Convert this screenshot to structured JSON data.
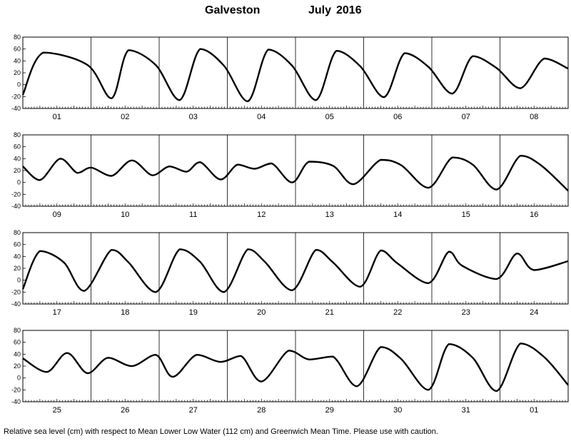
{
  "header": {
    "station": "Galveston",
    "month": "July",
    "year": "2016"
  },
  "footer": {
    "note": "Relative sea level (cm) with respect to Mean Lower Low Water (112 cm) and Greenwich Mean Time. Please use with caution."
  },
  "chart_data": {
    "type": "line",
    "title": "Galveston July 2016",
    "ylabel": "",
    "xlabel": "",
    "ylim": [
      -40,
      80
    ],
    "yticks": [
      -40,
      -20,
      0,
      20,
      40,
      60,
      80
    ],
    "grid": "vertical day separators only",
    "line_color": "#000000",
    "panels": [
      {
        "days": [
          "01",
          "02",
          "03",
          "04",
          "05",
          "06",
          "07",
          "08"
        ],
        "series": [
          {
            "x_days": [
              0,
              0.3,
              0.95,
              1.3,
              1.55,
              1.95,
              2.3,
              2.6,
              2.95,
              3.3,
              3.6,
              3.95,
              4.3,
              4.6,
              4.95,
              5.3,
              5.6,
              5.95,
              6.3,
              6.6,
              6.95,
              7.3,
              7.65,
              8.0
            ],
            "y_cm": [
              -17,
              54,
              33,
              -23,
              58,
              33,
              -26,
              60,
              32,
              -28,
              59,
              32,
              -26,
              57,
              31,
              -21,
              53,
              30,
              -15,
              48,
              28,
              -6,
              44,
              27
            ]
          }
        ]
      },
      {
        "days": [
          "09",
          "10",
          "11",
          "12",
          "13",
          "14",
          "15",
          "16"
        ],
        "series": [
          {
            "x_days": [
              0,
              0.25,
              0.55,
              0.8,
              1.0,
              1.3,
              1.6,
              1.9,
              2.15,
              2.4,
              2.6,
              2.9,
              3.15,
              3.4,
              3.65,
              3.95,
              4.2,
              4.55,
              4.85,
              5.25,
              5.55,
              5.95,
              6.3,
              6.6,
              6.95,
              7.3,
              7.6,
              8.0
            ],
            "y_cm": [
              27,
              4,
              40,
              16,
              25,
              11,
              37,
              12,
              27,
              18,
              34,
              5,
              30,
              23,
              32,
              0,
              35,
              28,
              -3,
              38,
              29,
              -9,
              42,
              30,
              -12,
              45,
              29,
              -14
            ]
          }
        ]
      },
      {
        "days": [
          "17",
          "18",
          "19",
          "20",
          "21",
          "22",
          "23",
          "24"
        ],
        "series": [
          {
            "x_days": [
              0,
              0.25,
              0.6,
              0.9,
              1.3,
              1.55,
              1.95,
              2.3,
              2.6,
              2.95,
              3.3,
              3.55,
              3.95,
              4.3,
              4.55,
              4.95,
              5.25,
              5.5,
              5.95,
              6.25,
              6.45,
              6.95,
              7.25,
              7.5,
              8.0
            ],
            "y_cm": [
              -15,
              49,
              30,
              -18,
              51,
              30,
              -20,
              52,
              31,
              -20,
              52,
              31,
              -17,
              51,
              30,
              -11,
              50,
              28,
              -5,
              48,
              24,
              2,
              45,
              17,
              32
            ]
          }
        ]
      },
      {
        "days": [
          "25",
          "26",
          "27",
          "28",
          "29",
          "30",
          "31",
          "01"
        ],
        "series": [
          {
            "x_days": [
              0,
              0.35,
              0.65,
              0.95,
              1.25,
              1.6,
              1.95,
              2.2,
              2.55,
              2.9,
              3.2,
              3.5,
              3.9,
              4.2,
              4.55,
              4.9,
              5.25,
              5.55,
              5.95,
              6.25,
              6.6,
              6.95,
              7.3,
              7.65,
              8.0
            ],
            "y_cm": [
              33,
              10,
              42,
              8,
              34,
              20,
              39,
              2,
              39,
              27,
              37,
              -6,
              46,
              31,
              36,
              -14,
              52,
              32,
              -20,
              57,
              34,
              -22,
              58,
              35,
              -12
            ]
          }
        ]
      }
    ]
  }
}
